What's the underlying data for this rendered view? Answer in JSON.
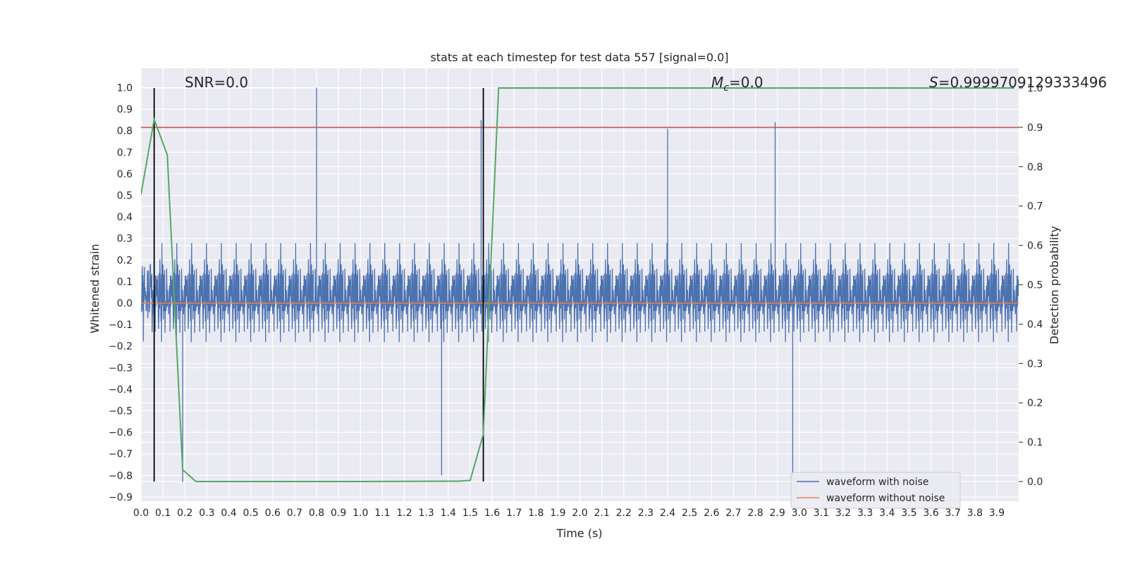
{
  "chart_data": {
    "type": "line",
    "title": "stats at each timestep for test data 557 [signal=0.0]",
    "xlabel": "Time (s)",
    "ylabel": "Whitened strain",
    "y2label": "Detection probability",
    "xlim": [
      0.0,
      4.0
    ],
    "ylim": [
      -0.92,
      1.09
    ],
    "y2lim": [
      -0.05,
      1.05
    ],
    "x_ticks": [
      "0.0",
      "0.1",
      "0.2",
      "0.3",
      "0.4",
      "0.5",
      "0.6",
      "0.7",
      "0.8",
      "0.9",
      "1.0",
      "1.1",
      "1.2",
      "1.3",
      "1.4",
      "1.5",
      "1.6",
      "1.7",
      "1.8",
      "1.9",
      "2.0",
      "2.1",
      "2.2",
      "2.3",
      "2.4",
      "2.5",
      "2.6",
      "2.7",
      "2.8",
      "2.9",
      "3.0",
      "3.1",
      "3.2",
      "3.3",
      "3.4",
      "3.5",
      "3.6",
      "3.7",
      "3.8",
      "3.9"
    ],
    "y_ticks": [
      "1.0",
      "0.9",
      "0.8",
      "0.7",
      "0.6",
      "0.5",
      "0.4",
      "0.3",
      "0.2",
      "0.1",
      "0.0",
      "−0.1",
      "−0.2",
      "−0.3",
      "−0.4",
      "−0.5",
      "−0.6",
      "−0.7",
      "−0.8",
      "−0.9"
    ],
    "y2_ticks": [
      "1.0",
      "0.9",
      "0.8",
      "0.7",
      "0.6",
      "0.5",
      "0.4",
      "0.3",
      "0.2",
      "0.1",
      "0.0"
    ],
    "annotations": {
      "snr": "SNR=0.0",
      "mc_symbol": "M",
      "mc_sub": "c",
      "mc_value": "=0.0",
      "s_symbol": "S",
      "s_value": "=0.9999709129333496"
    },
    "legend": {
      "placement": "lower-right",
      "entries": [
        "waveform with noise",
        "waveform without noise"
      ]
    },
    "series": [
      {
        "name": "waveform with noise",
        "color": "#4c72b0",
        "kind": "noise",
        "envelope": 0.3,
        "peak_max": 1.0,
        "peak_min": -0.83
      },
      {
        "name": "waveform without noise",
        "color": "#dd8452",
        "kind": "constant",
        "value": 0.0
      },
      {
        "name": "detection probability",
        "color": "#55a868",
        "axis": "right",
        "x": [
          0.0,
          0.06,
          0.12,
          0.19,
          0.25,
          0.5,
          1.0,
          1.45,
          1.5,
          1.56,
          1.63,
          1.7,
          2.0,
          3.0,
          3.98
        ],
        "y": [
          0.73,
          0.92,
          0.83,
          0.03,
          0.0,
          0.0,
          0.0,
          0.001,
          0.003,
          0.12,
          1.0,
          1.0,
          1.0,
          1.0,
          1.0
        ]
      },
      {
        "name": "threshold",
        "color": "#c44e52",
        "axis": "right",
        "kind": "hline",
        "value": 0.9
      }
    ],
    "vlines": [
      0.06,
      1.56
    ],
    "vline_color": "#000000"
  }
}
